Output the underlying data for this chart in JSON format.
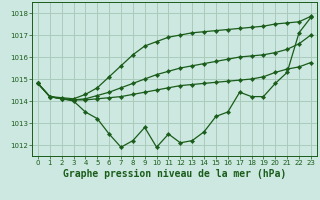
{
  "bg_color": "#cce8e0",
  "grid_color": "#aaccbb",
  "line_color": "#1a5c1a",
  "marker_color": "#1a5c1a",
  "xlabel": "Graphe pression niveau de la mer (hPa)",
  "xlabel_fontsize": 7.0,
  "ylim": [
    1011.5,
    1018.5
  ],
  "xlim": [
    -0.5,
    23.5
  ],
  "yticks": [
    1012,
    1013,
    1014,
    1015,
    1016,
    1017,
    1018
  ],
  "xticks": [
    0,
    1,
    2,
    3,
    4,
    5,
    6,
    7,
    8,
    9,
    10,
    11,
    12,
    13,
    14,
    15,
    16,
    17,
    18,
    19,
    20,
    21,
    22,
    23
  ],
  "line1": [
    1014.8,
    1014.2,
    1014.1,
    1014.0,
    1013.5,
    1013.2,
    1012.5,
    1011.9,
    1012.2,
    1012.8,
    1011.9,
    1012.5,
    1012.1,
    1012.2,
    1012.6,
    1013.3,
    1013.5,
    1014.4,
    1014.2,
    1014.2,
    1014.8,
    1015.3,
    1017.1,
    1017.8
  ],
  "line2": [
    1014.8,
    1014.2,
    1014.1,
    1014.05,
    1014.05,
    1014.1,
    1014.15,
    1014.2,
    1014.3,
    1014.4,
    1014.5,
    1014.6,
    1014.7,
    1014.75,
    1014.8,
    1014.85,
    1014.9,
    1014.95,
    1015.0,
    1015.1,
    1015.3,
    1015.45,
    1015.55,
    1015.75
  ],
  "line3": [
    1014.8,
    1014.2,
    1014.1,
    1014.05,
    1014.1,
    1014.25,
    1014.4,
    1014.6,
    1014.8,
    1015.0,
    1015.2,
    1015.35,
    1015.5,
    1015.6,
    1015.7,
    1015.8,
    1015.9,
    1016.0,
    1016.05,
    1016.1,
    1016.2,
    1016.35,
    1016.6,
    1017.0
  ],
  "line4": [
    1014.8,
    1014.2,
    1014.15,
    1014.1,
    1014.3,
    1014.6,
    1015.1,
    1015.6,
    1016.1,
    1016.5,
    1016.7,
    1016.9,
    1017.0,
    1017.1,
    1017.15,
    1017.2,
    1017.25,
    1017.3,
    1017.35,
    1017.4,
    1017.5,
    1017.55,
    1017.6,
    1017.85
  ]
}
